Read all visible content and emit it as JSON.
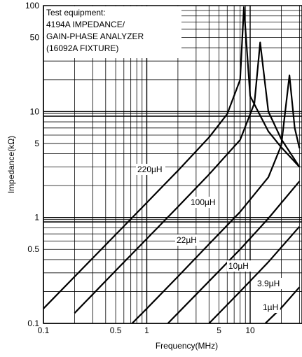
{
  "chart_data": {
    "type": "line",
    "title": "",
    "xlabel": "Frequency(MHz)",
    "ylabel": "Impedance(kΩ)",
    "x_scale": "log",
    "y_scale": "log",
    "xlim": [
      0.1,
      30
    ],
    "ylim": [
      0.1,
      100
    ],
    "grid": true,
    "x_ticks": [
      {
        "value": 0.1,
        "label": "0.1"
      },
      {
        "value": 0.5,
        "label": "0.5"
      },
      {
        "value": 1,
        "label": "1"
      },
      {
        "value": 5,
        "label": "5"
      },
      {
        "value": 10,
        "label": "10"
      }
    ],
    "y_ticks": [
      {
        "value": 0.1,
        "label": "0.1"
      },
      {
        "value": 0.5,
        "label": "0.5"
      },
      {
        "value": 1,
        "label": "1"
      },
      {
        "value": 5,
        "label": "5"
      },
      {
        "value": 10,
        "label": "10"
      },
      {
        "value": 50,
        "label": "50"
      },
      {
        "value": 100,
        "label": "100"
      }
    ],
    "annotation_lines": [
      "Test equipment:",
      "4194A IMPEDANCE/",
      "GAIN-PHASE ANALYZER",
      "(16092A FIXTURE)"
    ],
    "series": [
      {
        "name": "220µH",
        "peak_freq": 8.7,
        "peak_z": 97,
        "x": [
          0.1,
          0.5,
          1,
          2,
          4,
          6,
          8,
          8.7,
          10,
          15,
          20,
          30
        ],
        "y": [
          0.138,
          0.69,
          1.38,
          2.77,
          5.7,
          9.5,
          20,
          97,
          14,
          6.5,
          4.6,
          3.0
        ]
      },
      {
        "name": "100µH",
        "peak_freq": 12.5,
        "peak_z": 45,
        "x": [
          0.2,
          0.5,
          1,
          2,
          4,
          8,
          11,
          12.5,
          15,
          20,
          30
        ],
        "y": [
          0.125,
          0.315,
          0.63,
          1.26,
          2.55,
          5.4,
          12,
          45,
          10,
          5.5,
          3.0
        ]
      },
      {
        "name": "22µH",
        "peak_freq": 24,
        "peak_z": 22,
        "x": [
          0.72,
          1,
          2,
          4,
          8,
          15,
          20,
          24,
          27,
          30
        ],
        "y": [
          0.1,
          0.138,
          0.277,
          0.56,
          1.13,
          2.4,
          4.8,
          22,
          7,
          4.5
        ]
      },
      {
        "name": "10µH",
        "x": [
          1.6,
          2,
          4,
          8,
          15,
          30
        ],
        "y": [
          0.1,
          0.125,
          0.25,
          0.5,
          0.98,
          2.2
        ]
      },
      {
        "name": "3.9µH",
        "x": [
          4.0,
          8,
          15,
          30
        ],
        "y": [
          0.1,
          0.2,
          0.38,
          0.82
        ]
      },
      {
        "name": "1µH",
        "x": [
          14,
          20,
          30
        ],
        "y": [
          0.1,
          0.14,
          0.22
        ]
      }
    ]
  }
}
